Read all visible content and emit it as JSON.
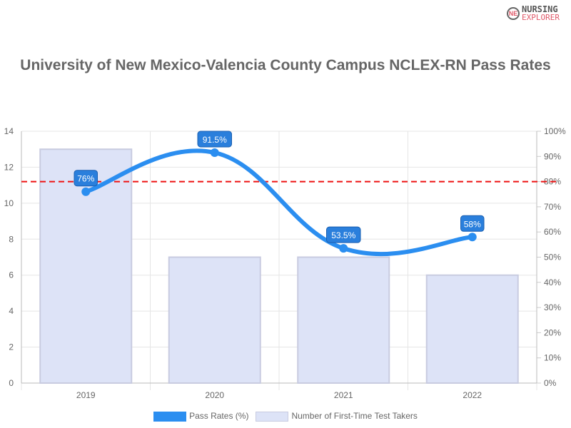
{
  "logo": {
    "line1": "NURSING",
    "line2": "EXPLORER",
    "mark": "NE"
  },
  "chart_data": {
    "type": "bar+line",
    "title": "University of New Mexico-Valencia County Campus NCLEX-RN Pass Rates",
    "categories": [
      "2019",
      "2020",
      "2021",
      "2022"
    ],
    "series": [
      {
        "name": "Pass Rates (%)",
        "type": "line",
        "axis": "right",
        "values": [
          76,
          91.5,
          53.5,
          58
        ],
        "labels": [
          "76%",
          "91.5%",
          "53.5%",
          "58%"
        ],
        "color": "#2b8ef0"
      },
      {
        "name": "Number of First-Time Test Takers",
        "type": "bar",
        "axis": "left",
        "values": [
          13,
          7,
          7,
          6
        ],
        "color": "#dde3f7"
      }
    ],
    "left_axis": {
      "range": [
        0,
        14
      ],
      "ticks": [
        "0",
        "2",
        "4",
        "6",
        "8",
        "10",
        "12",
        "14"
      ]
    },
    "right_axis": {
      "range": [
        0,
        100
      ],
      "ticks": [
        "0%",
        "10%",
        "20%",
        "30%",
        "40%",
        "50%",
        "60%",
        "70%",
        "80%",
        "90%",
        "100%"
      ]
    },
    "reference_line": {
      "value": 80,
      "axis": "right",
      "color": "#ee1111",
      "style": "dashed"
    },
    "grid": true,
    "legend": "bottom"
  }
}
